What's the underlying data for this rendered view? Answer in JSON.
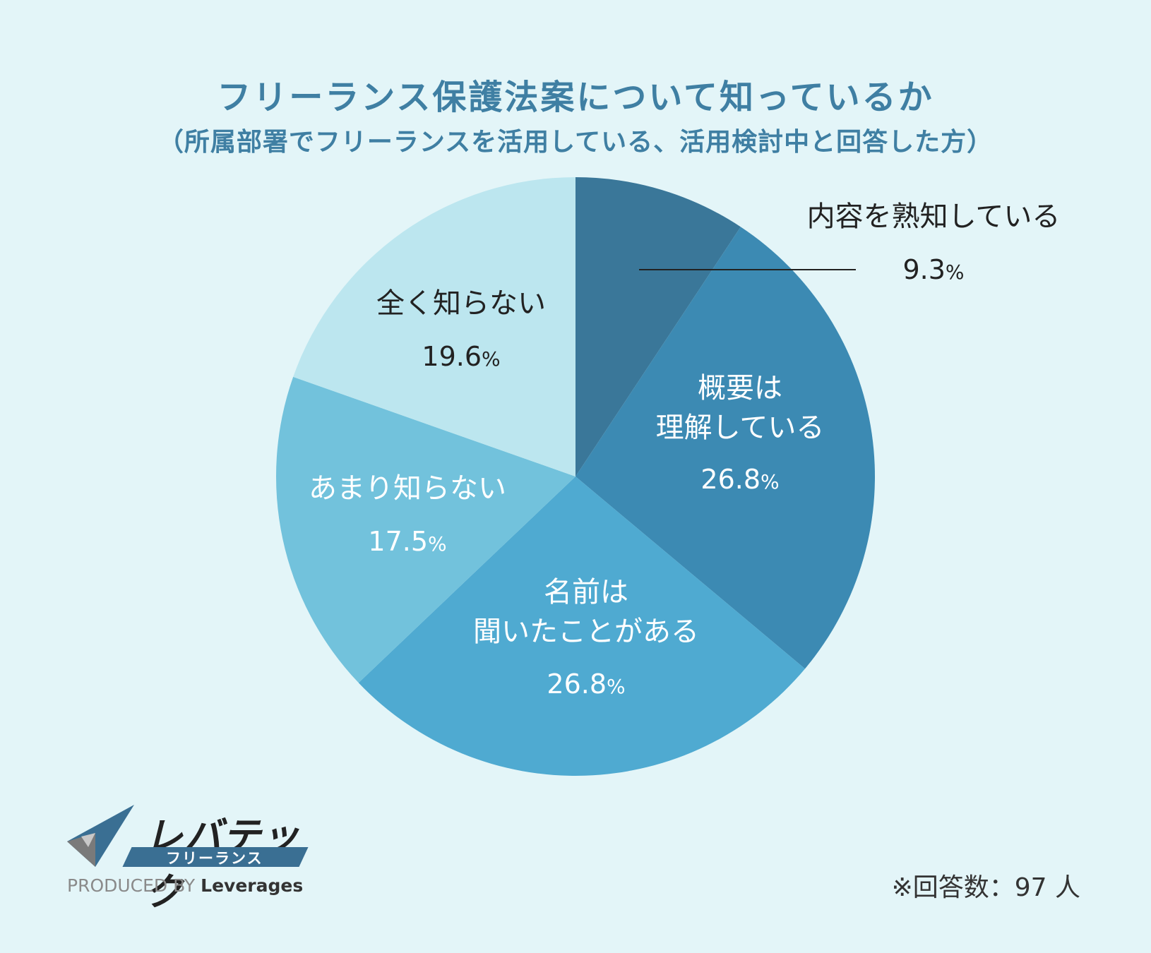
{
  "title": "フリーランス保護法案について知っているか",
  "subtitle": "（所属部署でフリーランスを活用している、活用検討中と回答した方）",
  "chart_data": {
    "type": "pie",
    "start": "12 o'clock, clockwise",
    "slices": [
      {
        "label": "内容を熟知している",
        "value": 9.3,
        "display": "9.3",
        "color": "#3a7799",
        "text_color": "#222222"
      },
      {
        "label": "概要は\n理解している",
        "value": 26.8,
        "display": "26.8",
        "color": "#3c8ab3",
        "text_color": "#ffffff"
      },
      {
        "label": "名前は\n聞いたことがある",
        "value": 26.8,
        "display": "26.8",
        "color": "#4faad1",
        "text_color": "#ffffff"
      },
      {
        "label": "あまり知らない",
        "value": 17.5,
        "display": "17.5",
        "color": "#72c2dc",
        "text_color": "#ffffff"
      },
      {
        "label": "全く知らない",
        "value": 19.6,
        "display": "19.6",
        "color": "#bce6ef",
        "text_color": "#222222"
      }
    ],
    "unit": "%"
  },
  "footer": {
    "note": "※回答数：97 人",
    "logo_name": "レバテック",
    "logo_sub": "フリーランス",
    "produced_by": "PRODUCED BY",
    "brand": "Leverages"
  },
  "colors": {
    "title": "#3f7fa3",
    "background": "#e3f5f8"
  }
}
